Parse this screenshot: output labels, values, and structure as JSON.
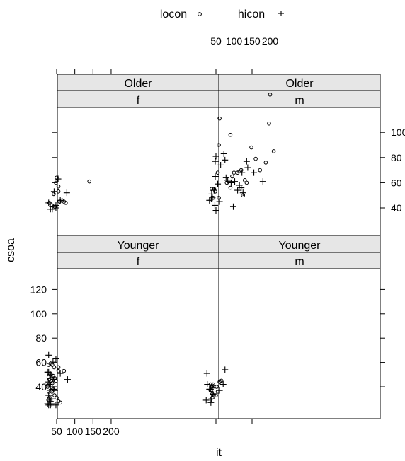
{
  "chart_data": {
    "type": "scatter",
    "title": "",
    "xlabel": "it",
    "ylabel": "csoa",
    "xlim": [
      5,
      215
    ],
    "ylim": [
      22,
      135
    ],
    "xticks": [
      50,
      100,
      150,
      200
    ],
    "yticks": [
      40,
      60,
      80,
      100,
      120
    ],
    "legend": {
      "placement": "top",
      "entries": [
        {
          "name": "locon",
          "symbol": "circle"
        },
        {
          "name": "hicon",
          "symbol": "plus"
        }
      ]
    },
    "panels": [
      {
        "age": "Older",
        "sex": "f",
        "series": [
          {
            "name": "locon",
            "points": [
              [
                50,
                64
              ],
              [
                48,
                60
              ],
              [
                55,
                57
              ],
              [
                55,
                53
              ],
              [
                42,
                51
              ],
              [
                65,
                46
              ],
              [
                70,
                45
              ],
              [
                75,
                44
              ],
              [
                37,
                42
              ],
              [
                45,
                41
              ],
              [
                58,
                45
              ],
              [
                30,
                44
              ],
              [
                140,
                61
              ]
            ]
          },
          {
            "name": "hicon",
            "points": [
              [
                54,
                63
              ],
              [
                43,
                53
              ],
              [
                60,
                46
              ],
              [
                28,
                44
              ],
              [
                48,
                42
              ],
              [
                38,
                41
              ],
              [
                33,
                39
              ],
              [
                38,
                39
              ],
              [
                48,
                40
              ],
              [
                78,
                52
              ]
            ]
          }
        ]
      },
      {
        "age": "Older",
        "sex": "m",
        "series": [
          {
            "name": "locon",
            "points": [
              [
                200,
                130
              ],
              [
                60,
                111
              ],
              [
                197,
                107
              ],
              [
                90,
                98
              ],
              [
                210,
                85
              ],
              [
                58,
                90
              ],
              [
                148,
                88
              ],
              [
                160,
                79
              ],
              [
                120,
                70
              ],
              [
                115,
                69
              ],
              [
                130,
                62
              ],
              [
                135,
                60
              ],
              [
                188,
                76
              ],
              [
                172,
                70
              ],
              [
                55,
                68
              ],
              [
                45,
                55
              ],
              [
                58,
                48
              ],
              [
                80,
                60
              ],
              [
                90,
                56
              ],
              [
                95,
                65
              ],
              [
                100,
                68
              ],
              [
                110,
                68
              ],
              [
                125,
                50
              ],
              [
                38,
                55
              ],
              [
                42,
                48
              ],
              [
                48,
                53
              ]
            ]
          },
          {
            "name": "hicon",
            "points": [
              [
                72,
                83
              ],
              [
                50,
                81
              ],
              [
                75,
                78
              ],
              [
                48,
                77
              ],
              [
                135,
                77
              ],
              [
                63,
                74
              ],
              [
                180,
                61
              ],
              [
                122,
                68
              ],
              [
                138,
                72
              ],
              [
                155,
                68
              ],
              [
                78,
                64
              ],
              [
                82,
                62
              ],
              [
                86,
                61
              ],
              [
                102,
                61
              ],
              [
                92,
                60
              ],
              [
                115,
                58
              ],
              [
                120,
                56
              ],
              [
                45,
                54
              ],
              [
                110,
                54
              ],
              [
                125,
                52
              ],
              [
                38,
                51
              ],
              [
                32,
                46
              ],
              [
                37,
                47
              ],
              [
                40,
                48
              ],
              [
                60,
                45
              ],
              [
                47,
                42
              ],
              [
                98,
                41
              ],
              [
                50,
                38
              ],
              [
                55,
                59
              ],
              [
                48,
                65
              ]
            ]
          }
        ]
      },
      {
        "age": "Younger",
        "sex": "f",
        "series": [
          {
            "name": "locon",
            "points": [
              [
                28,
                58
              ],
              [
                33,
                59
              ],
              [
                38,
                58
              ],
              [
                43,
                56
              ],
              [
                55,
                56
              ],
              [
                55,
                53
              ],
              [
                70,
                53
              ],
              [
                22,
                42
              ],
              [
                25,
                40
              ],
              [
                28,
                48
              ],
              [
                30,
                46
              ],
              [
                32,
                50
              ],
              [
                35,
                45
              ],
              [
                38,
                43
              ],
              [
                40,
                49
              ],
              [
                45,
                47
              ],
              [
                48,
                45
              ],
              [
                40,
                38
              ],
              [
                44,
                33
              ],
              [
                37,
                36
              ],
              [
                33,
                37
              ],
              [
                28,
                36
              ],
              [
                30,
                31
              ],
              [
                50,
                31
              ],
              [
                55,
                28
              ],
              [
                60,
                27
              ]
            ]
          },
          {
            "name": "hicon",
            "points": [
              [
                28,
                66
              ],
              [
                48,
                63
              ],
              [
                40,
                61
              ],
              [
                60,
                51
              ],
              [
                80,
                46
              ],
              [
                25,
                52
              ],
              [
                28,
                52
              ],
              [
                33,
                50
              ],
              [
                38,
                48
              ],
              [
                42,
                46
              ],
              [
                27,
                44
              ],
              [
                30,
                42
              ],
              [
                33,
                40
              ],
              [
                38,
                40
              ],
              [
                42,
                38
              ],
              [
                45,
                37
              ],
              [
                28,
                33
              ],
              [
                30,
                29
              ],
              [
                33,
                28
              ],
              [
                37,
                30
              ],
              [
                25,
                26
              ],
              [
                28,
                25
              ],
              [
                33,
                25
              ],
              [
                37,
                26
              ],
              [
                48,
                25
              ]
            ]
          }
        ]
      },
      {
        "age": "Younger",
        "sex": "m",
        "series": [
          {
            "name": "locon",
            "points": [
              [
                35,
                42
              ],
              [
                38,
                40
              ],
              [
                40,
                41
              ],
              [
                42,
                42
              ],
              [
                35,
                37
              ],
              [
                38,
                35
              ],
              [
                40,
                34
              ],
              [
                44,
                33
              ],
              [
                40,
                31
              ],
              [
                50,
                33
              ],
              [
                55,
                36
              ],
              [
                52,
                40
              ],
              [
                60,
                44
              ],
              [
                65,
                45
              ]
            ]
          },
          {
            "name": "hicon",
            "points": [
              [
                25,
                51
              ],
              [
                75,
                54
              ],
              [
                26,
                42
              ],
              [
                32,
                38
              ],
              [
                35,
                38
              ],
              [
                40,
                39
              ],
              [
                42,
                34
              ],
              [
                38,
                30
              ],
              [
                70,
                42
              ],
              [
                60,
                37
              ],
              [
                23,
                29
              ],
              [
                36,
                27
              ]
            ]
          }
        ]
      }
    ]
  }
}
